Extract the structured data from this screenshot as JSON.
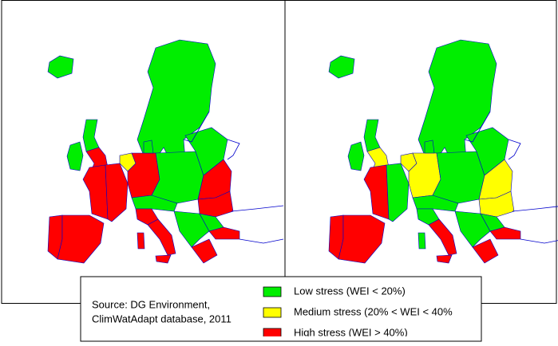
{
  "source": [
    "Source: DG Environment,",
    "ClimWatAdapt database, 2011"
  ],
  "legend": [
    {
      "label": "Low stress (WEI < 20%)",
      "color": "#00ee00"
    },
    {
      "label": "Medium stress (20% < WEI < 40%",
      "color": "#ffff00"
    },
    {
      "label": "High stress (WEI > 40%)",
      "color": "#ff0000"
    }
  ]
}
